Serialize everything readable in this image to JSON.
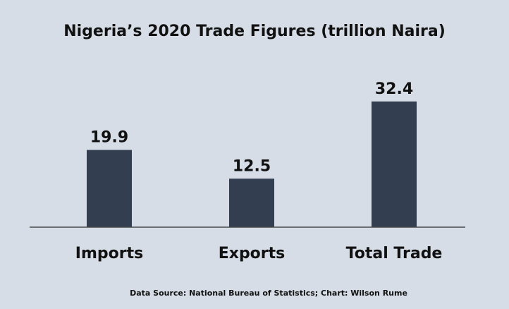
{
  "chart_data": {
    "type": "bar",
    "title": "Nigeria’s 2020 Trade Figures (trillion Naira)",
    "categories": [
      "Imports",
      "Exports",
      "Total Trade"
    ],
    "values": [
      19.9,
      12.5,
      32.4
    ],
    "data_labels": [
      "19.9",
      "12.5",
      "32.4"
    ],
    "xlabel": "",
    "ylabel": "",
    "ylim": [
      0,
      40
    ],
    "grid": false,
    "legend": "none",
    "source_note": "Data Source: National Bureau of Statistics; Chart: Wilson Rume",
    "colors": {
      "bar": "#333f50",
      "axis": "#4a4a4a",
      "background": "#d6dde6",
      "text": "#111111"
    }
  }
}
